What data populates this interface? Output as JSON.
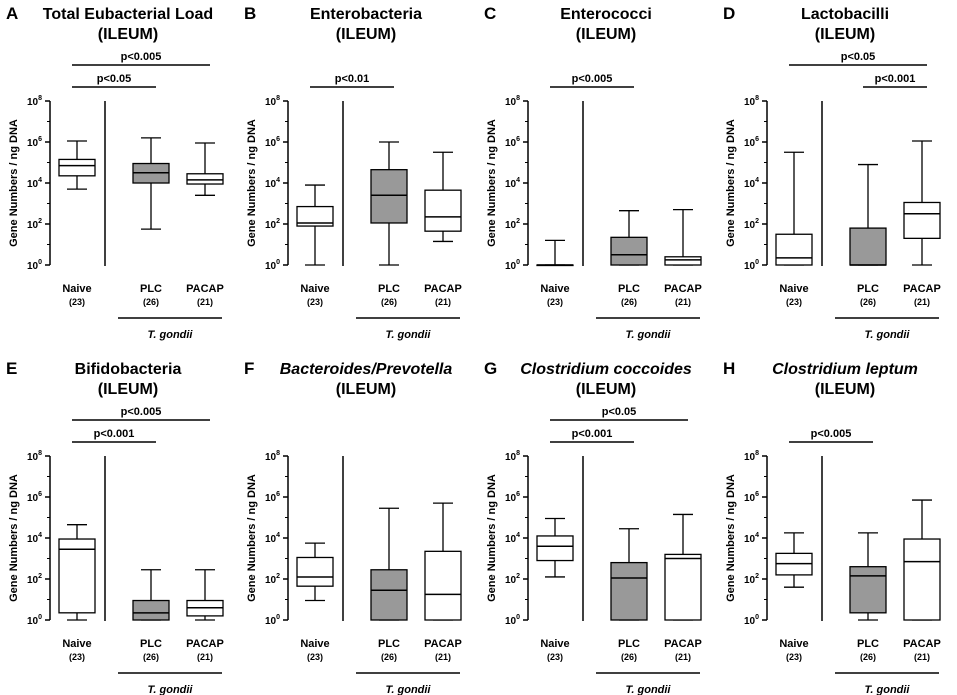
{
  "figure": {
    "group_label": "T. gondii",
    "ylabel": "Gene Numbers / ng DNA",
    "colors": {
      "PLC": "#999999",
      "Naive": "#ffffff",
      "PACAP": "#ffffff",
      "line": "#000000"
    }
  },
  "chart_data": [
    {
      "panel": "A",
      "type": "box",
      "yscale": "log10",
      "title": [
        "Total Eubacterial Load",
        "(ILEUM)"
      ],
      "title_italic": [
        false,
        false
      ],
      "ylabel": "Gene Numbers / ng DNA",
      "ylim_exponent": [
        0,
        8
      ],
      "yticks": [
        {
          "base": "10",
          "exp": "0"
        },
        {
          "base": "10",
          "exp": "2"
        },
        {
          "base": "10",
          "exp": "4"
        },
        {
          "base": "10",
          "exp": "6"
        },
        {
          "base": "10",
          "exp": "8"
        }
      ],
      "categories": [
        "Naive",
        "PLC",
        "PACAP"
      ],
      "n": [
        "(23)",
        "(26)",
        "(21)"
      ],
      "boxes_log10": [
        {
          "whisker_low": 3.7,
          "q1": 4.35,
          "median": 4.85,
          "q3": 5.15,
          "whisker_high": 6.05
        },
        {
          "whisker_low": 1.75,
          "q1": 4.0,
          "median": 4.5,
          "q3": 4.95,
          "whisker_high": 6.2
        },
        {
          "whisker_low": 3.4,
          "q1": 3.95,
          "median": 4.15,
          "q3": 4.45,
          "whisker_high": 5.95
        }
      ],
      "group_label": "T. gondii",
      "significance": [
        {
          "from": "Naive",
          "to": "PLC",
          "label": "p<0.05"
        },
        {
          "from": "Naive",
          "to": "PACAP",
          "label": "p<0.005"
        }
      ]
    },
    {
      "panel": "B",
      "type": "box",
      "yscale": "log10",
      "title": [
        "Enterobacteria",
        "(ILEUM)"
      ],
      "title_italic": [
        false,
        false
      ],
      "ylabel": "Gene Numbers / ng DNA",
      "ylim_exponent": [
        0,
        8
      ],
      "yticks": [
        {
          "base": "10",
          "exp": "0"
        },
        {
          "base": "10",
          "exp": "2"
        },
        {
          "base": "10",
          "exp": "4"
        },
        {
          "base": "10",
          "exp": "6"
        },
        {
          "base": "10",
          "exp": "8"
        }
      ],
      "categories": [
        "Naive",
        "PLC",
        "PACAP"
      ],
      "n": [
        "(23)",
        "(26)",
        "(21)"
      ],
      "boxes_log10": [
        {
          "whisker_low": 0.0,
          "q1": 1.9,
          "median": 2.05,
          "q3": 2.85,
          "whisker_high": 3.9
        },
        {
          "whisker_low": 0.0,
          "q1": 2.05,
          "median": 3.4,
          "q3": 4.65,
          "whisker_high": 6.0
        },
        {
          "whisker_low": 1.15,
          "q1": 1.65,
          "median": 2.35,
          "q3": 3.65,
          "whisker_high": 5.5
        }
      ],
      "group_label": "T. gondii",
      "significance": [
        {
          "from": "Naive",
          "to": "PLC",
          "label": "p<0.01"
        }
      ]
    },
    {
      "panel": "C",
      "type": "box",
      "yscale": "log10",
      "title": [
        "Enterococci",
        "(ILEUM)"
      ],
      "title_italic": [
        false,
        false
      ],
      "ylabel": "Gene Numbers / ng DNA",
      "ylim_exponent": [
        0,
        8
      ],
      "yticks": [
        {
          "base": "10",
          "exp": "0"
        },
        {
          "base": "10",
          "exp": "2"
        },
        {
          "base": "10",
          "exp": "4"
        },
        {
          "base": "10",
          "exp": "6"
        },
        {
          "base": "10",
          "exp": "8"
        }
      ],
      "categories": [
        "Naive",
        "PLC",
        "PACAP"
      ],
      "n": [
        "(23)",
        "(26)",
        "(21)"
      ],
      "boxes_log10": [
        {
          "whisker_low": 0.0,
          "q1": 0.0,
          "median": 0.0,
          "q3": 0.0,
          "whisker_high": 1.2
        },
        {
          "whisker_low": 0.0,
          "q1": 0.0,
          "median": 0.5,
          "q3": 1.35,
          "whisker_high": 2.65
        },
        {
          "whisker_low": 0.0,
          "q1": 0.0,
          "median": 0.25,
          "q3": 0.4,
          "whisker_high": 2.7
        }
      ],
      "group_label": "T. gondii",
      "significance": [
        {
          "from": "Naive",
          "to": "PLC",
          "label": "p<0.005"
        }
      ]
    },
    {
      "panel": "D",
      "type": "box",
      "yscale": "log10",
      "title": [
        "Lactobacilli",
        "(ILEUM)"
      ],
      "title_italic": [
        false,
        false
      ],
      "ylabel": "Gene Numbers / ng DNA",
      "ylim_exponent": [
        0,
        8
      ],
      "yticks": [
        {
          "base": "10",
          "exp": "0"
        },
        {
          "base": "10",
          "exp": "2"
        },
        {
          "base": "10",
          "exp": "4"
        },
        {
          "base": "10",
          "exp": "6"
        },
        {
          "base": "10",
          "exp": "8"
        }
      ],
      "categories": [
        "Naive",
        "PLC",
        "PACAP"
      ],
      "n": [
        "(23)",
        "(26)",
        "(21)"
      ],
      "boxes_log10": [
        {
          "whisker_low": 0.0,
          "q1": 0.0,
          "median": 0.35,
          "q3": 1.5,
          "whisker_high": 5.5
        },
        {
          "whisker_low": 0.0,
          "q1": 0.0,
          "median": 0.0,
          "q3": 1.8,
          "whisker_high": 4.9
        },
        {
          "whisker_low": 0.0,
          "q1": 1.3,
          "median": 2.5,
          "q3": 3.05,
          "whisker_high": 6.05
        }
      ],
      "group_label": "T. gondii",
      "significance": [
        {
          "from": "PLC",
          "to": "PACAP",
          "label": "p<0.001"
        },
        {
          "from": "Naive",
          "to": "PACAP",
          "label": "p<0.05"
        }
      ]
    },
    {
      "panel": "E",
      "type": "box",
      "yscale": "log10",
      "title": [
        "Bifidobacteria",
        "(ILEUM)"
      ],
      "title_italic": [
        false,
        false
      ],
      "ylabel": "Gene Numbers / ng DNA",
      "ylim_exponent": [
        0,
        8
      ],
      "yticks": [
        {
          "base": "10",
          "exp": "0"
        },
        {
          "base": "10",
          "exp": "2"
        },
        {
          "base": "10",
          "exp": "4"
        },
        {
          "base": "10",
          "exp": "6"
        },
        {
          "base": "10",
          "exp": "8"
        }
      ],
      "categories": [
        "Naive",
        "PLC",
        "PACAP"
      ],
      "n": [
        "(23)",
        "(26)",
        "(21)"
      ],
      "boxes_log10": [
        {
          "whisker_low": 0.0,
          "q1": 0.35,
          "median": 3.45,
          "q3": 3.95,
          "whisker_high": 4.65
        },
        {
          "whisker_low": 0.0,
          "q1": 0.0,
          "median": 0.35,
          "q3": 0.95,
          "whisker_high": 2.45
        },
        {
          "whisker_low": 0.0,
          "q1": 0.2,
          "median": 0.6,
          "q3": 0.95,
          "whisker_high": 2.45
        }
      ],
      "group_label": "T. gondii",
      "significance": [
        {
          "from": "Naive",
          "to": "PLC",
          "label": "p<0.001"
        },
        {
          "from": "Naive",
          "to": "PACAP",
          "label": "p<0.005"
        }
      ]
    },
    {
      "panel": "F",
      "type": "box",
      "yscale": "log10",
      "title": [
        "Bacteroides/Prevotella",
        "(ILEUM)"
      ],
      "title_italic": [
        true,
        false
      ],
      "ylabel": "Gene Numbers / ng DNA",
      "ylim_exponent": [
        0,
        8
      ],
      "yticks": [
        {
          "base": "10",
          "exp": "0"
        },
        {
          "base": "10",
          "exp": "2"
        },
        {
          "base": "10",
          "exp": "4"
        },
        {
          "base": "10",
          "exp": "6"
        },
        {
          "base": "10",
          "exp": "8"
        }
      ],
      "categories": [
        "Naive",
        "PLC",
        "PACAP"
      ],
      "n": [
        "(23)",
        "(26)",
        "(21)"
      ],
      "boxes_log10": [
        {
          "whisker_low": 0.95,
          "q1": 1.65,
          "median": 2.1,
          "q3": 3.05,
          "whisker_high": 3.75
        },
        {
          "whisker_low": 0.0,
          "q1": 0.0,
          "median": 1.45,
          "q3": 2.45,
          "whisker_high": 5.45
        },
        {
          "whisker_low": 0.0,
          "q1": 0.0,
          "median": 1.25,
          "q3": 3.35,
          "whisker_high": 5.7
        }
      ],
      "group_label": "T. gondii",
      "significance": []
    },
    {
      "panel": "G",
      "type": "box",
      "yscale": "log10",
      "title": [
        "Clostridium coccoides",
        "(ILEUM)"
      ],
      "title_italic": [
        true,
        false
      ],
      "ylabel": "Gene Numbers / ng DNA",
      "ylim_exponent": [
        0,
        8
      ],
      "yticks": [
        {
          "base": "10",
          "exp": "0"
        },
        {
          "base": "10",
          "exp": "2"
        },
        {
          "base": "10",
          "exp": "4"
        },
        {
          "base": "10",
          "exp": "6"
        },
        {
          "base": "10",
          "exp": "8"
        }
      ],
      "categories": [
        "Naive",
        "PLC",
        "PACAP"
      ],
      "n": [
        "(23)",
        "(26)",
        "(21)"
      ],
      "boxes_log10": [
        {
          "whisker_low": 2.1,
          "q1": 2.9,
          "median": 3.6,
          "q3": 4.1,
          "whisker_high": 4.95
        },
        {
          "whisker_low": 0.0,
          "q1": 0.0,
          "median": 2.05,
          "q3": 2.8,
          "whisker_high": 4.45
        },
        {
          "whisker_low": 0.0,
          "q1": 0.0,
          "median": 3.0,
          "q3": 3.2,
          "whisker_high": 5.15
        }
      ],
      "group_label": "T. gondii",
      "significance": [
        {
          "from": "Naive",
          "to": "PLC",
          "label": "p<0.001"
        },
        {
          "from": "Naive",
          "to": "PACAP",
          "label": "p<0.05"
        }
      ]
    },
    {
      "panel": "H",
      "type": "box",
      "yscale": "log10",
      "title": [
        "Clostridium leptum",
        "(ILEUM)"
      ],
      "title_italic": [
        true,
        false
      ],
      "ylabel": "Gene Numbers / ng DNA",
      "ylim_exponent": [
        0,
        8
      ],
      "yticks": [
        {
          "base": "10",
          "exp": "0"
        },
        {
          "base": "10",
          "exp": "2"
        },
        {
          "base": "10",
          "exp": "4"
        },
        {
          "base": "10",
          "exp": "6"
        },
        {
          "base": "10",
          "exp": "8"
        }
      ],
      "categories": [
        "Naive",
        "PLC",
        "PACAP"
      ],
      "n": [
        "(23)",
        "(26)",
        "(21)"
      ],
      "boxes_log10": [
        {
          "whisker_low": 1.6,
          "q1": 2.2,
          "median": 2.75,
          "q3": 3.25,
          "whisker_high": 4.25
        },
        {
          "whisker_low": 0.0,
          "q1": 0.35,
          "median": 2.15,
          "q3": 2.6,
          "whisker_high": 4.25
        },
        {
          "whisker_low": 0.0,
          "q1": 0.0,
          "median": 2.85,
          "q3": 3.95,
          "whisker_high": 5.85
        }
      ],
      "group_label": "T. gondii",
      "significance": [
        {
          "from": "Naive",
          "to": "PLC",
          "label": "p<0.005"
        }
      ]
    }
  ]
}
